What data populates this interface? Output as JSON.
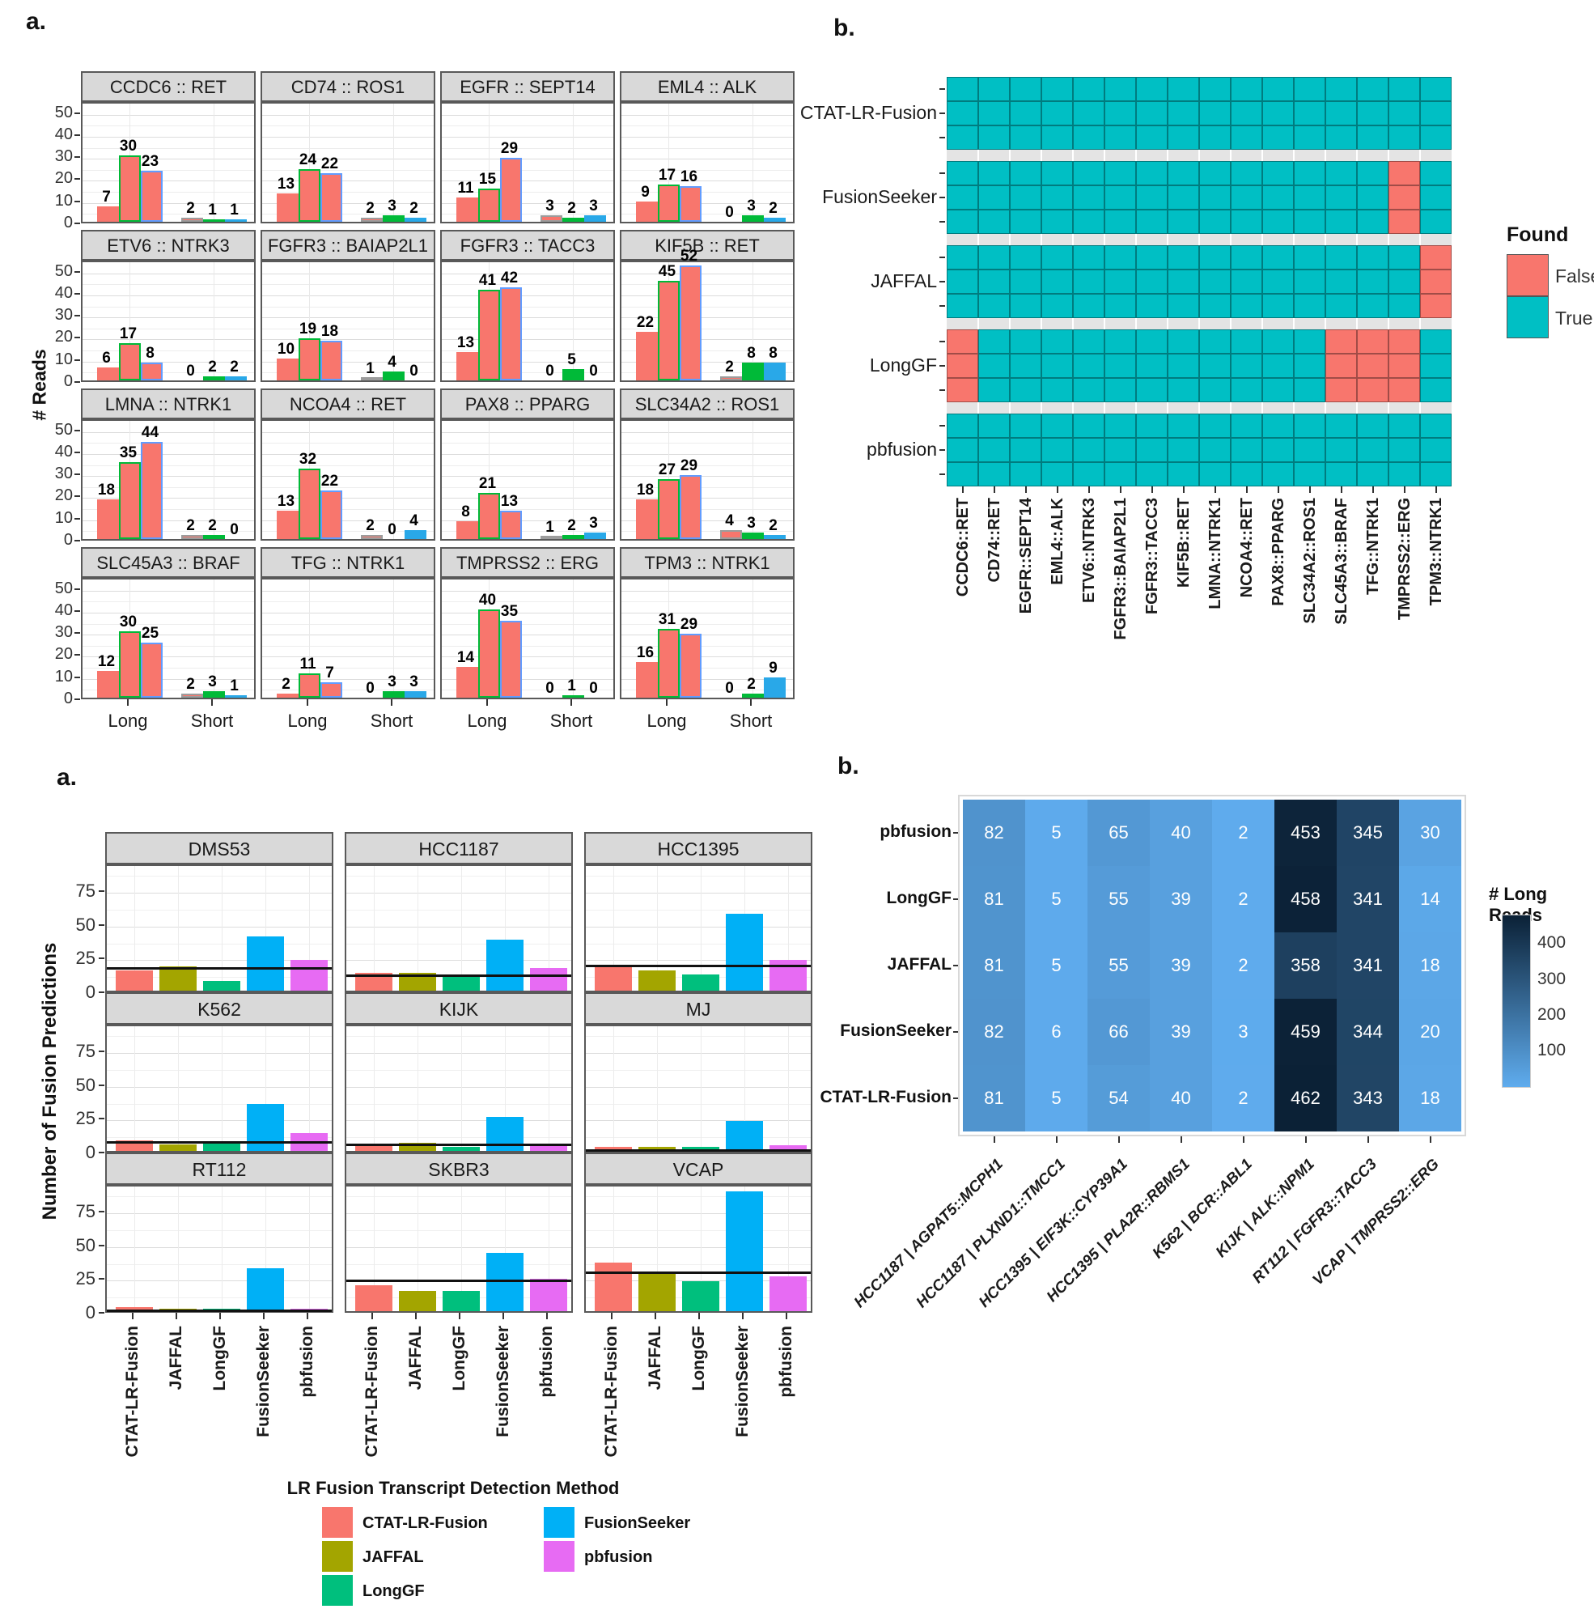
{
  "chart_data": [
    {
      "panel_label": "a.",
      "type": "bar",
      "ylabel": "# Reads",
      "yticks": [
        0,
        10,
        20,
        30,
        40,
        50
      ],
      "ylim": [
        0,
        55
      ],
      "group_labels": [
        "Long",
        "Short"
      ],
      "colors": {
        "long_fill": "#F8766D",
        "long_borders": [
          "none",
          "#00BA38",
          "#619CFF"
        ],
        "short_fills": [
          "#F8766D",
          "#00BA38",
          "#29A8E8"
        ],
        "short_first_border": "#9C9C9C"
      },
      "facets": [
        {
          "title": "CCDC6 :: RET",
          "long": [
            7,
            30,
            23
          ],
          "short": [
            2,
            1,
            1
          ]
        },
        {
          "title": "CD74 :: ROS1",
          "long": [
            13,
            24,
            22
          ],
          "short": [
            2,
            3,
            2
          ]
        },
        {
          "title": "EGFR :: SEPT14",
          "long": [
            11,
            15,
            29
          ],
          "short": [
            3,
            2,
            3
          ]
        },
        {
          "title": "EML4 :: ALK",
          "long": [
            9,
            17,
            16
          ],
          "short": [
            0,
            3,
            2
          ]
        },
        {
          "title": "ETV6 :: NTRK3",
          "long": [
            6,
            17,
            8
          ],
          "short": [
            0,
            2,
            2
          ]
        },
        {
          "title": "FGFR3 :: BAIAP2L1",
          "long": [
            10,
            19,
            18
          ],
          "short": [
            1,
            4,
            0
          ]
        },
        {
          "title": "FGFR3 :: TACC3",
          "long": [
            13,
            41,
            42
          ],
          "short": [
            0,
            5,
            0
          ]
        },
        {
          "title": "KIF5B :: RET",
          "long": [
            22,
            45,
            52
          ],
          "short": [
            2,
            8,
            8
          ]
        },
        {
          "title": "LMNA :: NTRK1",
          "long": [
            18,
            35,
            44
          ],
          "short": [
            2,
            2,
            0
          ]
        },
        {
          "title": "NCOA4 :: RET",
          "long": [
            13,
            32,
            22
          ],
          "short": [
            2,
            0,
            4
          ]
        },
        {
          "title": "PAX8 :: PPARG",
          "long": [
            8,
            21,
            13
          ],
          "short": [
            1,
            2,
            3
          ]
        },
        {
          "title": "SLC34A2 :: ROS1",
          "long": [
            18,
            27,
            29
          ],
          "short": [
            4,
            3,
            2
          ]
        },
        {
          "title": "SLC45A3 :: BRAF",
          "long": [
            12,
            30,
            25
          ],
          "short": [
            2,
            3,
            1
          ]
        },
        {
          "title": "TFG :: NTRK1",
          "long": [
            2,
            11,
            7
          ],
          "short": [
            0,
            3,
            3
          ]
        },
        {
          "title": "TMPRSS2 :: ERG",
          "long": [
            14,
            40,
            35
          ],
          "short": [
            0,
            1,
            0
          ]
        },
        {
          "title": "TPM3 :: NTRK1",
          "long": [
            16,
            31,
            29
          ],
          "short": [
            0,
            2,
            9
          ]
        }
      ]
    },
    {
      "panel_label": "b.",
      "type": "heatmap",
      "rows": [
        "CTAT-LR-Fusion",
        "FusionSeeker",
        "JAFFAL",
        "LongGF",
        "pbfusion"
      ],
      "columns": [
        "CCDC6::RET",
        "CD74::RET",
        "EGFR::SEPT14",
        "EML4::ALK",
        "ETV6::NTRK3",
        "FGFR3::BAIAP2L1",
        "FGFR3::TACC3",
        "KIF5B::RET",
        "LMNA::NTRK1",
        "NCOA4::RET",
        "PAX8::PPARG",
        "SLC34A2::ROS1",
        "SLC45A3::BRAF",
        "TFG::NTRK1",
        "TMPRSS2::ERG",
        "TPM3::NTRK1"
      ],
      "false_cells": {
        "FusionSeeker": [
          "TMPRSS2::ERG"
        ],
        "JAFFAL": [
          "TPM3::NTRK1"
        ],
        "LongGF": [
          "CCDC6::RET",
          "SLC45A3::BRAF",
          "TFG::NTRK1",
          "TMPRSS2::ERG"
        ]
      },
      "legend": {
        "title": "Found",
        "false_label": "False",
        "true_label": "True",
        "false_color": "#F8766D",
        "true_color": "#00BFC4"
      }
    },
    {
      "panel_label": "a.",
      "type": "bar",
      "ylabel": "Number of Fusion Predictions",
      "yticks": [
        0,
        25,
        50,
        75
      ],
      "ylim": [
        0,
        95
      ],
      "methods": [
        "CTAT-LR-Fusion",
        "JAFFAL",
        "LongGF",
        "FusionSeeker",
        "pbfusion"
      ],
      "method_colors": [
        "#F8766D",
        "#A3A500",
        "#00BF7D",
        "#00B0F6",
        "#E76BF3"
      ],
      "legend_title": "LR Fusion Transcript Detection Method",
      "facets": [
        {
          "title": "DMS53",
          "values": [
            15,
            18,
            7,
            40,
            23
          ],
          "hline": 19
        },
        {
          "title": "HCC1187",
          "values": [
            13,
            13,
            11,
            38,
            17
          ],
          "hline": 14
        },
        {
          "title": "HCC1395",
          "values": [
            19,
            15,
            12,
            57,
            23
          ],
          "hline": 21
        },
        {
          "title": "K562",
          "values": [
            8,
            5,
            6,
            35,
            13
          ],
          "hline": 9
        },
        {
          "title": "KIJK",
          "values": [
            4,
            6,
            3,
            25,
            5
          ],
          "hline": 7
        },
        {
          "title": "MJ",
          "values": [
            3,
            3,
            3,
            22,
            4
          ],
          "hline": 3
        },
        {
          "title": "RT112",
          "values": [
            3,
            2,
            2,
            32,
            2
          ],
          "hline": 3
        },
        {
          "title": "SKBR3",
          "values": [
            19,
            15,
            15,
            43,
            24
          ],
          "hline": 25
        },
        {
          "title": "VCAP",
          "values": [
            36,
            28,
            22,
            89,
            26
          ],
          "hline": 31
        }
      ]
    },
    {
      "panel_label": "b.",
      "type": "heatmap",
      "rows": [
        "pbfusion",
        "LongGF",
        "JAFFAL",
        "FusionSeeker",
        "CTAT-LR-Fusion"
      ],
      "columns": [
        "HCC1187 | AGPAT5::MCPH1",
        "HCC1187 | PLXND1::TMCC1",
        "HCC1395 | EIF3K::CYP39A1",
        "HCC1395 | PLA2R::RBMS1",
        "K562 | BCR::ABL1",
        "KIJK | ALK::NPM1",
        "RT112 | FGFR3::TACC3",
        "VCAP | TMPRSS2::ERG"
      ],
      "values": [
        [
          82,
          5,
          65,
          40,
          2,
          453,
          345,
          30
        ],
        [
          81,
          5,
          55,
          39,
          2,
          458,
          341,
          14
        ],
        [
          81,
          5,
          55,
          39,
          2,
          358,
          341,
          18
        ],
        [
          82,
          6,
          66,
          39,
          3,
          459,
          344,
          20
        ],
        [
          81,
          5,
          54,
          40,
          2,
          462,
          343,
          18
        ]
      ],
      "legend": {
        "title": "# Long Reads",
        "ticks": [
          400,
          300,
          200,
          100
        ]
      },
      "color_scale": {
        "low": "#5FACEE",
        "high": "#0B2136",
        "vmax": 462
      }
    }
  ]
}
